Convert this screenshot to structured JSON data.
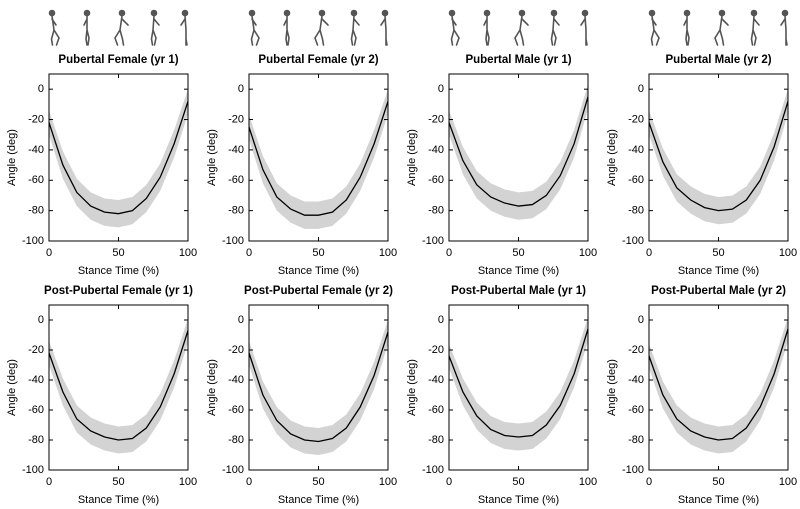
{
  "chart_data": [
    {
      "type": "line",
      "title": "Pubertal Female (yr 1)",
      "xlabel": "Stance Time (%)",
      "ylabel": "Angle (deg)",
      "x": [
        0,
        10,
        20,
        30,
        40,
        50,
        60,
        70,
        80,
        90,
        100
      ],
      "values": [
        -22,
        -50,
        -68,
        -77,
        -81,
        -82,
        -80,
        -72,
        -58,
        -36,
        -8
      ],
      "band_upper": [
        -14,
        -41,
        -59,
        -68,
        -72,
        -73,
        -71,
        -63,
        -49,
        -27,
        0
      ],
      "band_lower": [
        -30,
        -59,
        -77,
        -86,
        -90,
        -91,
        -89,
        -81,
        -67,
        -45,
        -16
      ],
      "color": "#000000",
      "band_color": "#d3d3d3",
      "xlim": [
        0,
        100
      ],
      "xticks": [
        0,
        50,
        100
      ],
      "ylim": [
        -100,
        10
      ],
      "yticks": [
        -100,
        -80,
        -60,
        -40,
        -20,
        0
      ]
    },
    {
      "type": "line",
      "title": "Pubertal Female (yr 2)",
      "xlabel": "Stance Time (%)",
      "ylabel": "Angle (deg)",
      "x": [
        0,
        10,
        20,
        30,
        40,
        50,
        60,
        70,
        80,
        90,
        100
      ],
      "values": [
        -25,
        -53,
        -71,
        -79,
        -83,
        -83,
        -81,
        -73,
        -58,
        -36,
        -8
      ],
      "band_upper": [
        -17,
        -44,
        -62,
        -70,
        -74,
        -74,
        -72,
        -64,
        -49,
        -27,
        0
      ],
      "band_lower": [
        -33,
        -62,
        -80,
        -88,
        -92,
        -92,
        -90,
        -82,
        -67,
        -45,
        -16
      ],
      "color": "#000000",
      "band_color": "#d3d3d3",
      "xlim": [
        0,
        100
      ],
      "xticks": [
        0,
        50,
        100
      ],
      "ylim": [
        -100,
        10
      ],
      "yticks": [
        -100,
        -80,
        -60,
        -40,
        -20,
        0
      ]
    },
    {
      "type": "line",
      "title": "Pubertal Male (yr 1)",
      "xlabel": "Stance Time (%)",
      "ylabel": "Angle (deg)",
      "x": [
        0,
        10,
        20,
        30,
        40,
        50,
        60,
        70,
        80,
        90,
        100
      ],
      "values": [
        -22,
        -47,
        -63,
        -71,
        -75,
        -77,
        -76,
        -70,
        -57,
        -36,
        -5
      ],
      "band_upper": [
        -14,
        -38,
        -54,
        -62,
        -66,
        -68,
        -67,
        -61,
        -48,
        -27,
        3
      ],
      "band_lower": [
        -30,
        -56,
        -72,
        -80,
        -84,
        -86,
        -85,
        -79,
        -66,
        -45,
        -13
      ],
      "color": "#000000",
      "band_color": "#d3d3d3",
      "xlim": [
        0,
        100
      ],
      "xticks": [
        0,
        50,
        100
      ],
      "ylim": [
        -100,
        10
      ],
      "yticks": [
        -100,
        -80,
        -60,
        -40,
        -20,
        0
      ]
    },
    {
      "type": "line",
      "title": "Pubertal Male (yr 2)",
      "xlabel": "Stance Time (%)",
      "ylabel": "Angle (deg)",
      "x": [
        0,
        10,
        20,
        30,
        40,
        50,
        60,
        70,
        80,
        90,
        100
      ],
      "values": [
        -22,
        -48,
        -65,
        -73,
        -78,
        -80,
        -79,
        -73,
        -60,
        -38,
        -8
      ],
      "band_upper": [
        -14,
        -39,
        -56,
        -64,
        -69,
        -71,
        -70,
        -64,
        -51,
        -29,
        0
      ],
      "band_lower": [
        -30,
        -57,
        -74,
        -82,
        -87,
        -89,
        -88,
        -82,
        -69,
        -47,
        -16
      ],
      "color": "#000000",
      "band_color": "#d3d3d3",
      "xlim": [
        0,
        100
      ],
      "xticks": [
        0,
        50,
        100
      ],
      "ylim": [
        -100,
        10
      ],
      "yticks": [
        -100,
        -80,
        -60,
        -40,
        -20,
        0
      ]
    },
    {
      "type": "line",
      "title": "Post-Pubertal Female (yr 1)",
      "xlabel": "Stance Time (%)",
      "ylabel": "Angle (deg)",
      "x": [
        0,
        10,
        20,
        30,
        40,
        50,
        60,
        70,
        80,
        90,
        100
      ],
      "values": [
        -22,
        -48,
        -66,
        -74,
        -78,
        -80,
        -79,
        -72,
        -58,
        -36,
        -7
      ],
      "band_upper": [
        -14,
        -39,
        -57,
        -65,
        -69,
        -71,
        -70,
        -63,
        -49,
        -27,
        1
      ],
      "band_lower": [
        -30,
        -57,
        -75,
        -83,
        -87,
        -89,
        -88,
        -81,
        -67,
        -45,
        -15
      ],
      "color": "#000000",
      "band_color": "#d3d3d3",
      "xlim": [
        0,
        100
      ],
      "xticks": [
        0,
        50,
        100
      ],
      "ylim": [
        -100,
        10
      ],
      "yticks": [
        -100,
        -80,
        -60,
        -40,
        -20,
        0
      ]
    },
    {
      "type": "line",
      "title": "Post-Pubertal Female (yr 2)",
      "xlabel": "Stance Time (%)",
      "ylabel": "Angle (deg)",
      "x": [
        0,
        10,
        20,
        30,
        40,
        50,
        60,
        70,
        80,
        90,
        100
      ],
      "values": [
        -22,
        -50,
        -67,
        -76,
        -80,
        -81,
        -79,
        -72,
        -58,
        -37,
        -8
      ],
      "band_upper": [
        -14,
        -41,
        -58,
        -67,
        -71,
        -72,
        -70,
        -63,
        -49,
        -28,
        0
      ],
      "band_lower": [
        -30,
        -59,
        -76,
        -85,
        -89,
        -90,
        -88,
        -81,
        -67,
        -46,
        -16
      ],
      "color": "#000000",
      "band_color": "#d3d3d3",
      "xlim": [
        0,
        100
      ],
      "xticks": [
        0,
        50,
        100
      ],
      "ylim": [
        -100,
        10
      ],
      "yticks": [
        -100,
        -80,
        -60,
        -40,
        -20,
        0
      ]
    },
    {
      "type": "line",
      "title": "Post-Pubertal Male (yr 1)",
      "xlabel": "Stance Time (%)",
      "ylabel": "Angle (deg)",
      "x": [
        0,
        10,
        20,
        30,
        40,
        50,
        60,
        70,
        80,
        90,
        100
      ],
      "values": [
        -24,
        -48,
        -64,
        -73,
        -77,
        -78,
        -77,
        -70,
        -57,
        -36,
        -6
      ],
      "band_upper": [
        -16,
        -39,
        -55,
        -64,
        -68,
        -69,
        -68,
        -61,
        -48,
        -27,
        2
      ],
      "band_lower": [
        -32,
        -57,
        -73,
        -82,
        -86,
        -87,
        -86,
        -79,
        -66,
        -45,
        -14
      ],
      "color": "#000000",
      "band_color": "#d3d3d3",
      "xlim": [
        0,
        100
      ],
      "xticks": [
        0,
        50,
        100
      ],
      "ylim": [
        -100,
        10
      ],
      "yticks": [
        -100,
        -80,
        -60,
        -40,
        -20,
        0
      ]
    },
    {
      "type": "line",
      "title": "Post-Pubertal Male (yr 2)",
      "xlabel": "Stance Time (%)",
      "ylabel": "Angle (deg)",
      "x": [
        0,
        10,
        20,
        30,
        40,
        50,
        60,
        70,
        80,
        90,
        100
      ],
      "values": [
        -24,
        -50,
        -66,
        -74,
        -78,
        -80,
        -79,
        -72,
        -58,
        -36,
        -6
      ],
      "band_upper": [
        -16,
        -41,
        -57,
        -65,
        -69,
        -71,
        -70,
        -63,
        -49,
        -27,
        2
      ],
      "band_lower": [
        -32,
        -59,
        -75,
        -83,
        -87,
        -89,
        -88,
        -81,
        -67,
        -45,
        -14
      ],
      "color": "#000000",
      "band_color": "#d3d3d3",
      "xlim": [
        0,
        100
      ],
      "xticks": [
        0,
        50,
        100
      ],
      "ylim": [
        -100,
        10
      ],
      "yticks": [
        -100,
        -80,
        -60,
        -40,
        -20,
        0
      ]
    }
  ]
}
